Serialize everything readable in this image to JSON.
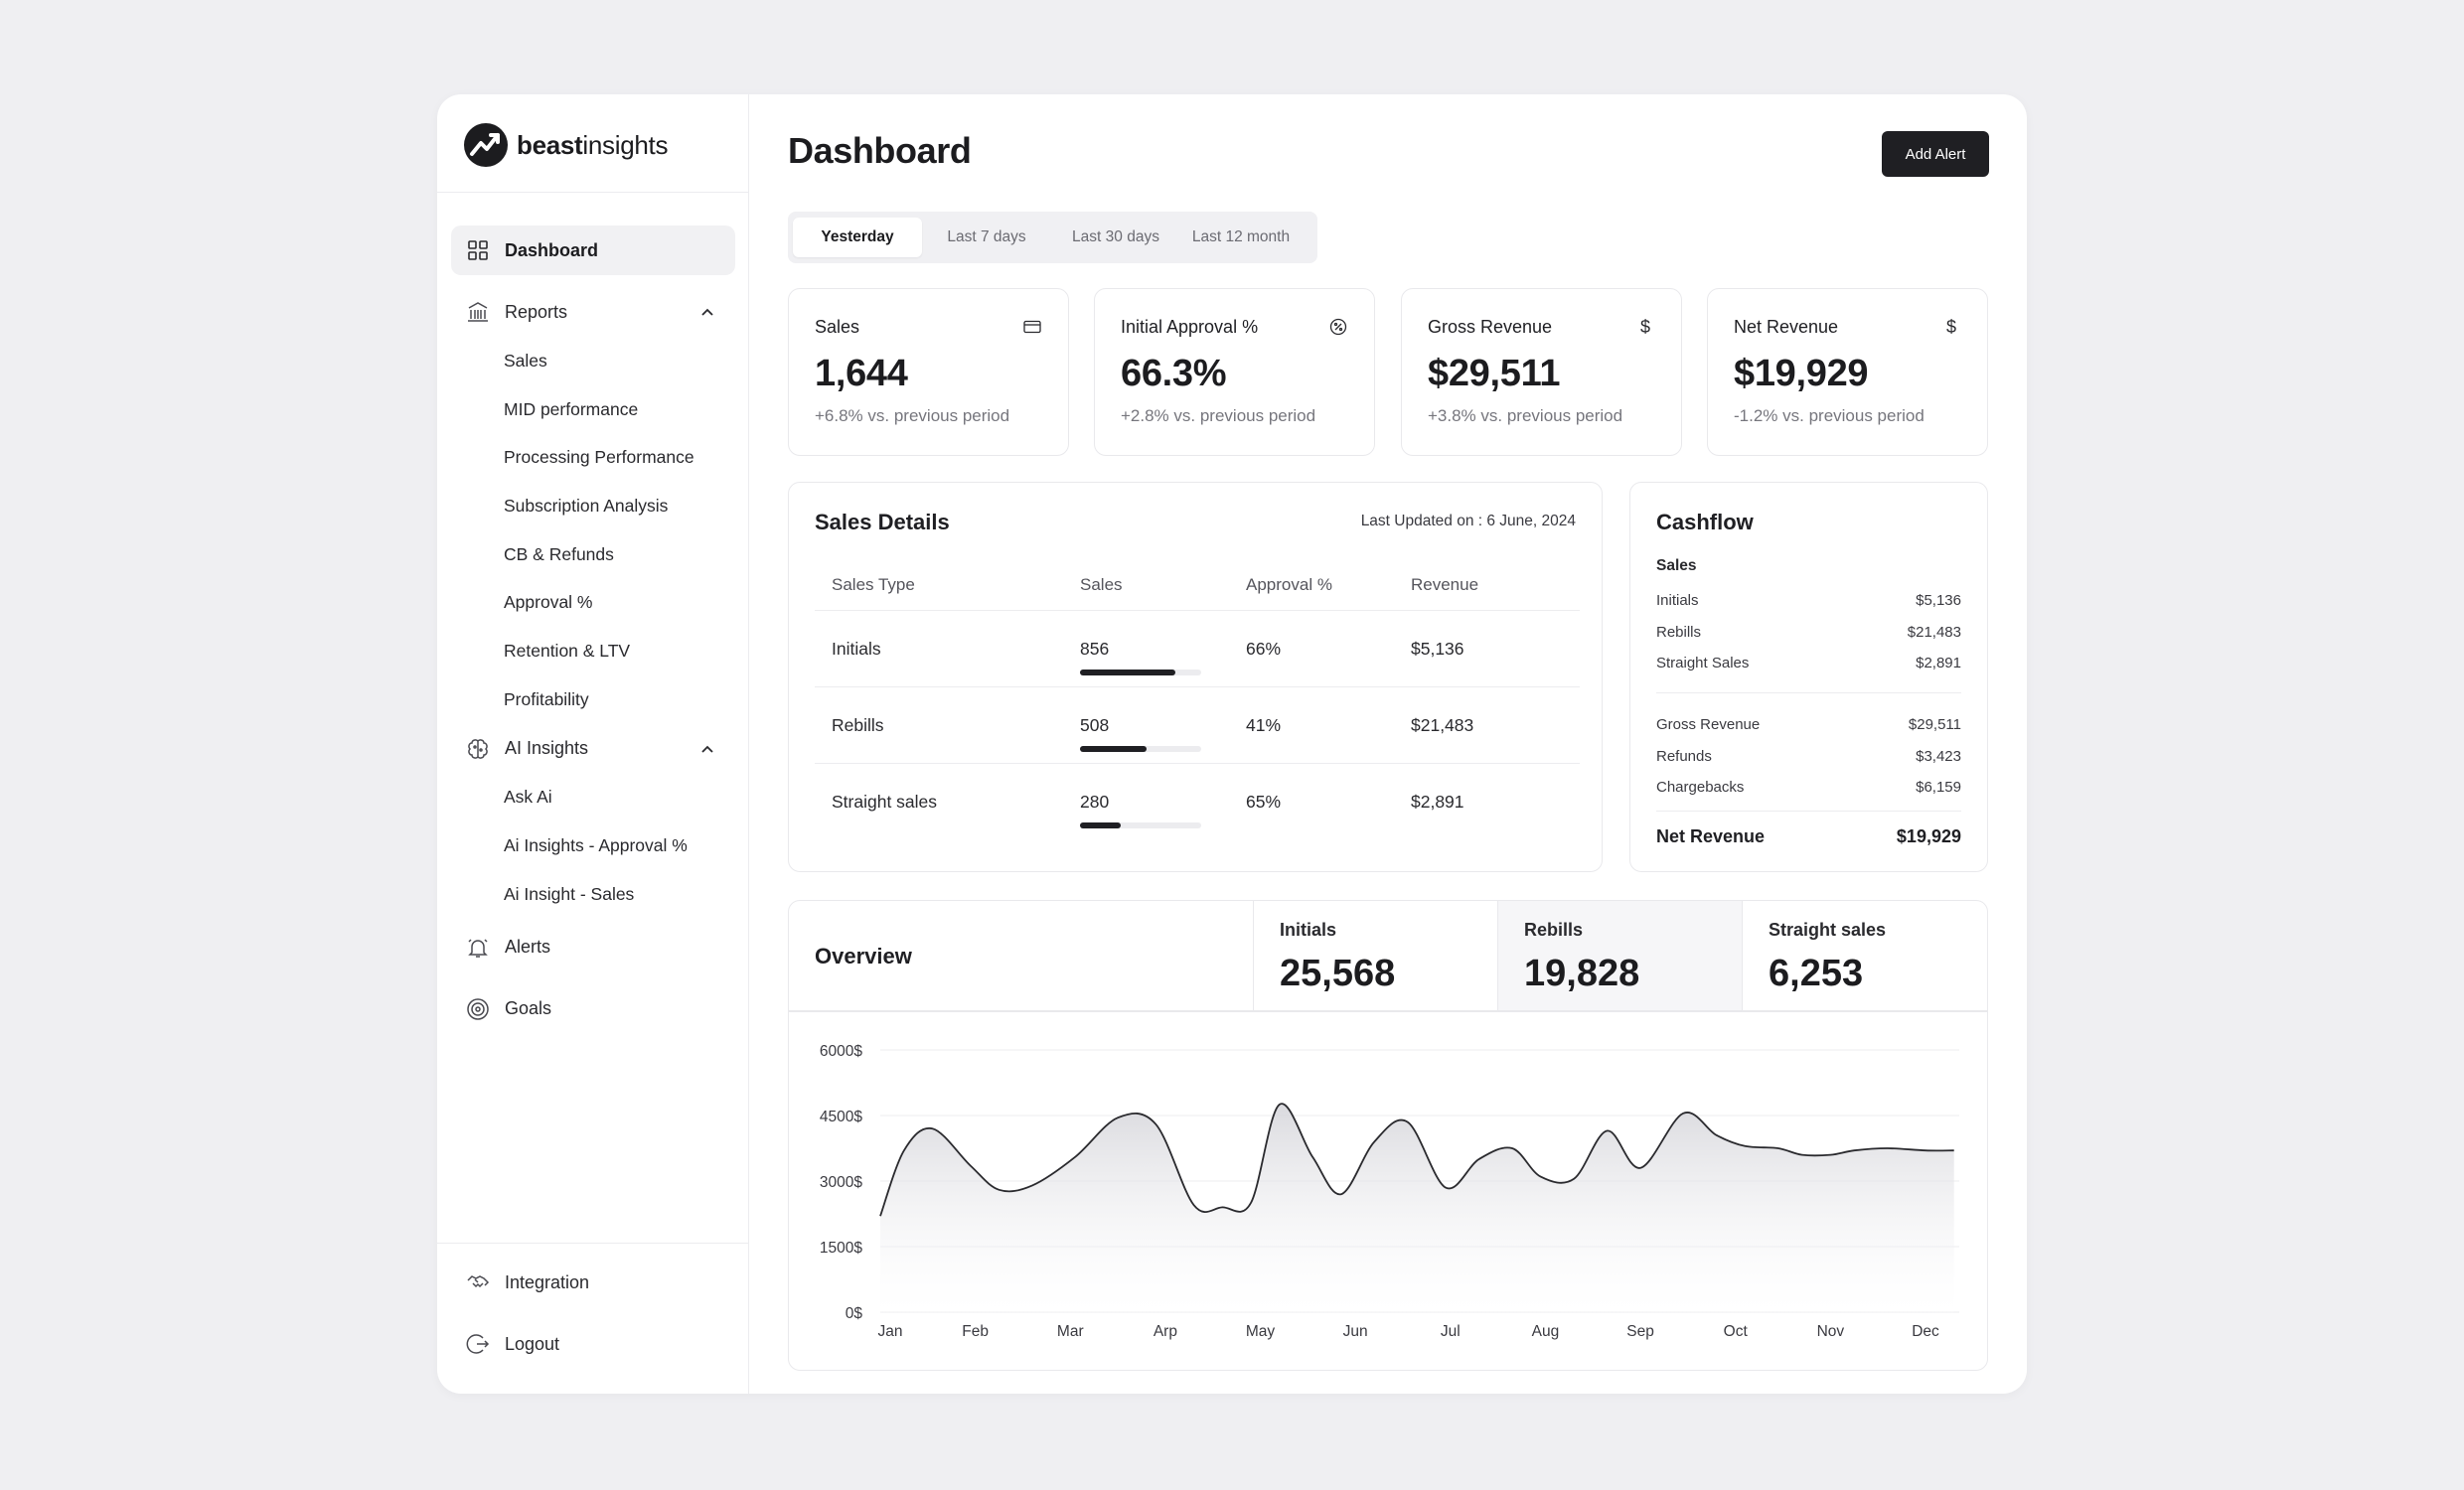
{
  "brand": {
    "bold": "beast",
    "light": "insights"
  },
  "nav": {
    "dashboard": "Dashboard",
    "reports": "Reports",
    "reports_items": [
      "Sales",
      "MID performance",
      "Processing Performance",
      "Subscription Analysis",
      "CB & Refunds",
      "Approval %",
      "Retention & LTV",
      "Profitability"
    ],
    "ai_insights": "AI Insights",
    "ai_items": [
      "Ask Ai",
      "Ai Insights - Approval %",
      "Ai Insight - Sales"
    ],
    "alerts": "Alerts",
    "goals": "Goals",
    "integration": "Integration",
    "logout": "Logout"
  },
  "header": {
    "title": "Dashboard",
    "add_alert": "Add Alert"
  },
  "periods": {
    "items": [
      "Yesterday",
      "Last 7 days",
      "Last 30 days",
      "Last 12 month"
    ],
    "selected": "Yesterday"
  },
  "kpis": [
    {
      "label": "Sales",
      "icon": "credit-card-icon",
      "value": "1,644",
      "delta": "+6.8% vs. previous period"
    },
    {
      "label": "Initial Approval %",
      "icon": "percent-badge-icon",
      "value": "66.3%",
      "delta": "+2.8% vs. previous period"
    },
    {
      "label": "Gross Revenue",
      "icon": "dollar-icon",
      "icon_glyph": "$",
      "value": "$29,511",
      "delta": "+3.8% vs. previous period"
    },
    {
      "label": "Net Revenue",
      "icon": "dollar-icon",
      "icon_glyph": "$",
      "value": "$19,929",
      "delta": "-1.2% vs. previous period"
    }
  ],
  "sales_details": {
    "title": "Sales Details",
    "updated": "Last Updated on : 6 June, 2024",
    "columns": [
      "Sales Type",
      "Sales",
      "Approval %",
      "Revenue"
    ],
    "rows": [
      {
        "type": "Initials",
        "sales": "856",
        "bar": 0.79,
        "approval": "66%",
        "revenue": "$5,136"
      },
      {
        "type": "Rebills",
        "sales": "508",
        "bar": 0.55,
        "approval": "41%",
        "revenue": "$21,483"
      },
      {
        "type": "Straight sales",
        "sales": "280",
        "bar": 0.34,
        "approval": "65%",
        "revenue": "$2,891"
      }
    ]
  },
  "cashflow": {
    "title": "Cashflow",
    "section": "Sales",
    "sales_rows": [
      {
        "label": "Initials",
        "value": "$5,136"
      },
      {
        "label": "Rebills",
        "value": "$21,483"
      },
      {
        "label": "Straight Sales",
        "value": "$2,891"
      }
    ],
    "rev_rows": [
      {
        "label": "Gross Revenue",
        "value": "$29,511"
      },
      {
        "label": "Refunds",
        "value": "$3,423"
      },
      {
        "label": "Chargebacks",
        "value": "$6,159"
      }
    ],
    "total_label": "Net Revenue",
    "total_value": "$19,929"
  },
  "overview": {
    "title": "Overview",
    "tabs": [
      {
        "label": "Initials",
        "value": "25,568"
      },
      {
        "label": "Rebills",
        "value": "19,828"
      },
      {
        "label": "Straight sales",
        "value": "6,253"
      }
    ],
    "selected": "Rebills"
  },
  "chart_data": {
    "type": "area",
    "title": "",
    "xlabel": "",
    "ylabel": "",
    "ylim": [
      0,
      6000
    ],
    "y_ticks": [
      "6000$",
      "4500$",
      "3000$",
      "1500$",
      "0$"
    ],
    "categories": [
      "Jan",
      "Feb",
      "Mar",
      "Arp",
      "May",
      "Jun",
      "Jul",
      "Aug",
      "Sep",
      "Oct",
      "Nov",
      "Dec"
    ],
    "x": [
      0,
      0.25,
      0.55,
      0.95,
      1.25,
      1.6,
      2.05,
      2.5,
      2.9,
      3.3,
      3.6,
      3.9,
      4.2,
      4.55,
      4.85,
      5.2,
      5.55,
      5.95,
      6.3,
      6.65,
      6.95,
      7.3,
      7.65,
      8.0,
      8.45,
      8.8,
      9.1,
      9.45,
      9.7,
      10.0,
      10.25,
      10.6,
      11.0,
      11.3
    ],
    "values": [
      2200,
      3700,
      4200,
      3350,
      2800,
      2900,
      3550,
      4450,
      4300,
      2450,
      2400,
      2500,
      4750,
      3550,
      2700,
      3900,
      4350,
      2850,
      3500,
      3750,
      3100,
      3050,
      4150,
      3300,
      4550,
      4050,
      3800,
      3750,
      3600,
      3600,
      3700,
      3750,
      3700,
      3700
    ]
  }
}
